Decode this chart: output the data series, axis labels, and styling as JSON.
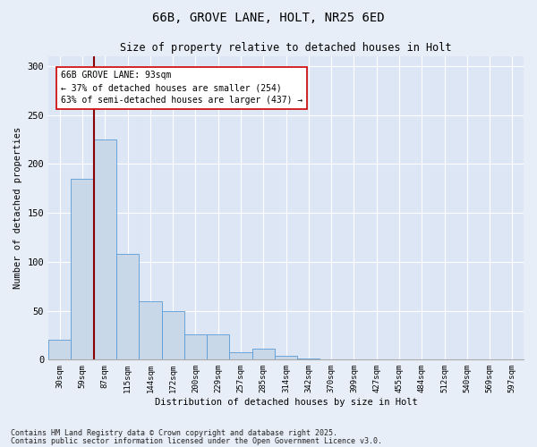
{
  "title_line1": "66B, GROVE LANE, HOLT, NR25 6ED",
  "title_line2": "Size of property relative to detached houses in Holt",
  "xlabel": "Distribution of detached houses by size in Holt",
  "ylabel": "Number of detached properties",
  "bar_color": "#c8d8e8",
  "bar_edge_color": "#5b9bd5",
  "background_color": "#dce6f5",
  "fig_background_color": "#e8eef8",
  "categories": [
    "30sqm",
    "59sqm",
    "87sqm",
    "115sqm",
    "144sqm",
    "172sqm",
    "200sqm",
    "229sqm",
    "257sqm",
    "285sqm",
    "314sqm",
    "342sqm",
    "370sqm",
    "399sqm",
    "427sqm",
    "455sqm",
    "484sqm",
    "512sqm",
    "540sqm",
    "569sqm",
    "597sqm"
  ],
  "values": [
    20,
    185,
    225,
    108,
    60,
    50,
    26,
    26,
    8,
    11,
    4,
    1,
    0,
    0,
    0,
    0,
    0,
    0,
    0,
    0,
    0
  ],
  "ylim": [
    0,
    310
  ],
  "yticks": [
    0,
    50,
    100,
    150,
    200,
    250,
    300
  ],
  "annotation_text": "66B GROVE LANE: 93sqm\n← 37% of detached houses are smaller (254)\n63% of semi-detached houses are larger (437) →",
  "red_line_x": 1.5,
  "grid_color": "#ffffff",
  "footnote1": "Contains HM Land Registry data © Crown copyright and database right 2025.",
  "footnote2": "Contains public sector information licensed under the Open Government Licence v3.0."
}
